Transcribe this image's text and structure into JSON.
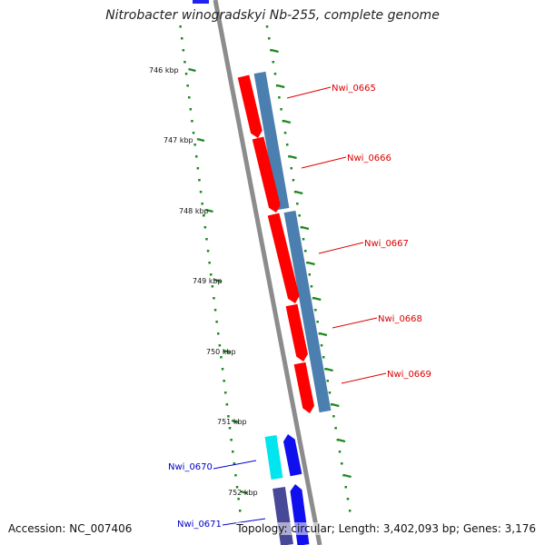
{
  "title": "Nitrobacter winogradskyi Nb-255, complete genome",
  "accession": "Accession: NC_007406",
  "summary": "Topology: circular; Length: 3,402,093 bp; Genes: 3,176",
  "colors": {
    "backbone": "#8c8c8c",
    "tick": "#1f8a1f",
    "red_gene": "#ff0000",
    "steel_gene": "#4a7fb0",
    "cyan_gene": "#00e5ee",
    "blue_gene": "#1010ee",
    "navy_gene": "#484898",
    "label_red": "#dd0000",
    "label_blue": "#0000cc"
  },
  "kbp_labels": [
    "746 kbp",
    "747 kbp",
    "748 kbp",
    "749 kbp",
    "750 kbp",
    "751 kbp",
    "752 kbp"
  ],
  "gene_labels": [
    {
      "text": "Nwi_0665",
      "color": "label_red"
    },
    {
      "text": "Nwi_0666",
      "color": "label_red"
    },
    {
      "text": "Nwi_0667",
      "color": "label_red"
    },
    {
      "text": "Nwi_0668",
      "color": "label_red"
    },
    {
      "text": "Nwi_0669",
      "color": "label_red"
    },
    {
      "text": "Nwi_0670",
      "color": "label_blue"
    },
    {
      "text": "Nwi_0671",
      "color": "label_blue"
    }
  ]
}
